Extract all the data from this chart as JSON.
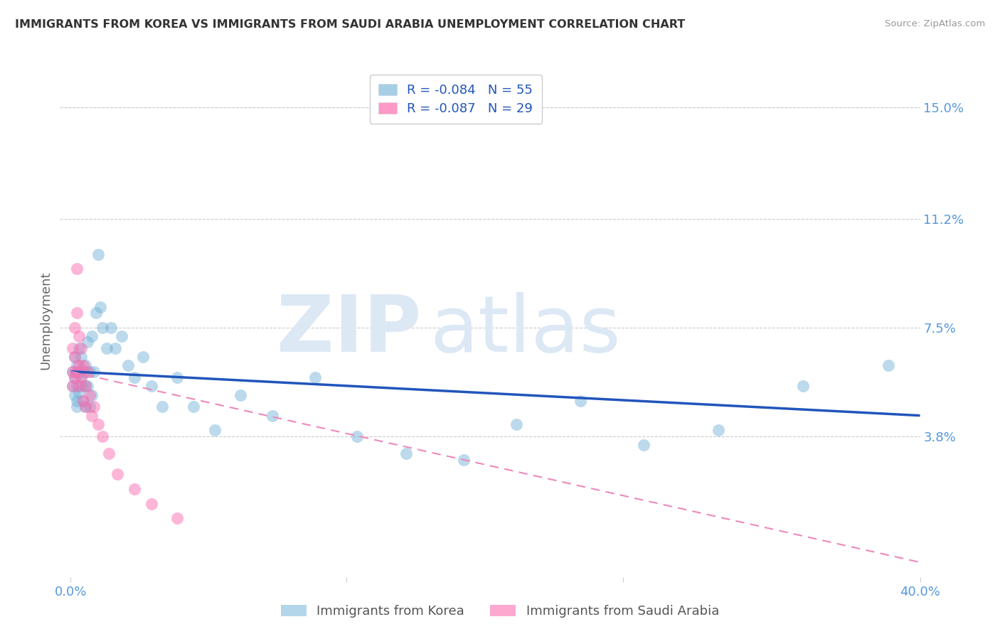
{
  "title": "IMMIGRANTS FROM KOREA VS IMMIGRANTS FROM SAUDI ARABIA UNEMPLOYMENT CORRELATION CHART",
  "source": "Source: ZipAtlas.com",
  "ylabel": "Unemployment",
  "xlim": [
    -0.005,
    0.4
  ],
  "ylim": [
    -0.01,
    0.165
  ],
  "yticks": [
    0.038,
    0.075,
    0.112,
    0.15
  ],
  "ytick_labels": [
    "3.8%",
    "7.5%",
    "11.2%",
    "15.0%"
  ],
  "xtick_vals": [
    0.0,
    0.13,
    0.26,
    0.4
  ],
  "xtick_labels": [
    "0.0%",
    "",
    "",
    "40.0%"
  ],
  "korea_color": "#6baed6",
  "saudi_color": "#fb6eb0",
  "korea_line_color": "#2255bb",
  "saudi_line_color": "#ee88bb",
  "bg_color": "#ffffff",
  "grid_color": "#cccccc",
  "watermark_color": "#dde8f5",
  "title_color": "#333333",
  "axis_label_color": "#666666",
  "tick_label_color": "#5599dd",
  "korea_x": [
    0.001,
    0.001,
    0.002,
    0.002,
    0.002,
    0.003,
    0.003,
    0.003,
    0.003,
    0.004,
    0.004,
    0.004,
    0.005,
    0.005,
    0.005,
    0.006,
    0.006,
    0.007,
    0.007,
    0.007,
    0.008,
    0.008,
    0.009,
    0.009,
    0.01,
    0.01,
    0.011,
    0.012,
    0.013,
    0.014,
    0.015,
    0.017,
    0.019,
    0.021,
    0.024,
    0.027,
    0.03,
    0.034,
    0.038,
    0.043,
    0.05,
    0.058,
    0.068,
    0.08,
    0.095,
    0.115,
    0.135,
    0.158,
    0.185,
    0.21,
    0.24,
    0.27,
    0.305,
    0.345,
    0.385
  ],
  "korea_y": [
    0.06,
    0.055,
    0.058,
    0.052,
    0.065,
    0.05,
    0.062,
    0.055,
    0.048,
    0.06,
    0.068,
    0.053,
    0.055,
    0.065,
    0.058,
    0.06,
    0.05,
    0.062,
    0.055,
    0.048,
    0.07,
    0.055,
    0.06,
    0.048,
    0.052,
    0.072,
    0.06,
    0.08,
    0.1,
    0.082,
    0.075,
    0.068,
    0.075,
    0.068,
    0.072,
    0.062,
    0.058,
    0.065,
    0.055,
    0.048,
    0.058,
    0.048,
    0.04,
    0.052,
    0.045,
    0.058,
    0.038,
    0.032,
    0.03,
    0.042,
    0.05,
    0.035,
    0.04,
    0.055,
    0.062
  ],
  "saudi_x": [
    0.001,
    0.001,
    0.001,
    0.002,
    0.002,
    0.002,
    0.003,
    0.003,
    0.003,
    0.004,
    0.004,
    0.004,
    0.005,
    0.005,
    0.006,
    0.006,
    0.007,
    0.007,
    0.008,
    0.009,
    0.01,
    0.011,
    0.013,
    0.015,
    0.018,
    0.022,
    0.03,
    0.038,
    0.05
  ],
  "saudi_y": [
    0.068,
    0.06,
    0.055,
    0.075,
    0.065,
    0.058,
    0.095,
    0.08,
    0.06,
    0.072,
    0.062,
    0.055,
    0.058,
    0.068,
    0.05,
    0.062,
    0.055,
    0.048,
    0.06,
    0.052,
    0.045,
    0.048,
    0.042,
    0.038,
    0.032,
    0.025,
    0.02,
    0.015,
    0.01
  ],
  "korea_trendline_x0": 0.0,
  "korea_trendline_y0": 0.06,
  "korea_trendline_x1": 0.4,
  "korea_trendline_y1": 0.045,
  "saudi_trendline_x0": 0.0,
  "saudi_trendline_y0": 0.06,
  "saudi_trendline_x1": 0.4,
  "saudi_trendline_y1": -0.005,
  "legend_r1": "R = -0.084",
  "legend_n1": "N = 55",
  "legend_r2": "R = -0.087",
  "legend_n2": "N = 29",
  "legend_series1": "Immigrants from Korea",
  "legend_series2": "Immigrants from Saudi Arabia"
}
